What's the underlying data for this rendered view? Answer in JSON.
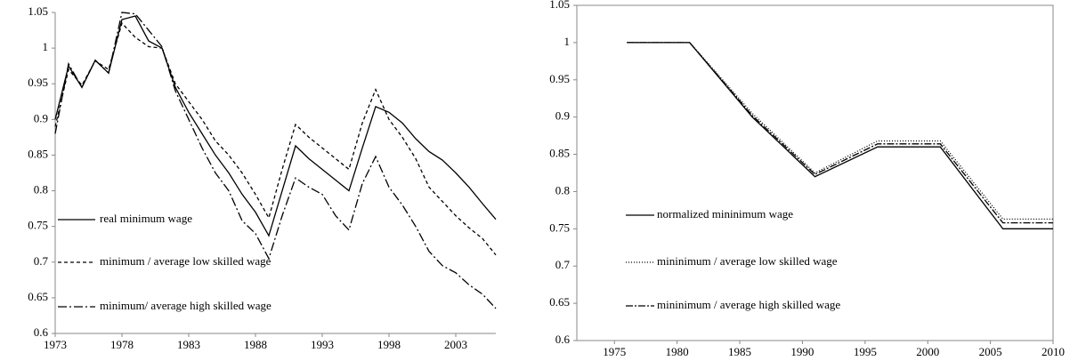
{
  "chart_data": [
    {
      "type": "line",
      "x": [
        1973,
        1974,
        1975,
        1976,
        1977,
        1978,
        1979,
        1980,
        1981,
        1982,
        1983,
        1984,
        1985,
        1986,
        1987,
        1988,
        1989,
        1990,
        1991,
        1992,
        1993,
        1994,
        1995,
        1996,
        1997,
        1998,
        1999,
        2000,
        2001,
        2002,
        2003,
        2004,
        2005,
        2006
      ],
      "series": [
        {
          "name": "real minimum wage",
          "color": "#000000",
          "dash": "none",
          "values": [
            0.9,
            0.975,
            0.945,
            0.983,
            0.965,
            1.04,
            1.045,
            1.01,
            1.0,
            0.945,
            0.91,
            0.88,
            0.85,
            0.825,
            0.795,
            0.77,
            0.737,
            0.8,
            0.863,
            0.845,
            0.83,
            0.815,
            0.8,
            0.86,
            0.918,
            0.91,
            0.895,
            0.873,
            0.855,
            0.843,
            0.825,
            0.805,
            0.782,
            0.76
          ]
        },
        {
          "name": "minimum / average low skilled wage",
          "color": "#000000",
          "dash": "4,3",
          "values": [
            0.89,
            0.97,
            0.948,
            0.982,
            0.97,
            1.035,
            1.015,
            1.002,
            1.0,
            0.95,
            0.925,
            0.9,
            0.87,
            0.85,
            0.825,
            0.795,
            0.762,
            0.83,
            0.893,
            0.875,
            0.86,
            0.845,
            0.83,
            0.895,
            0.942,
            0.9,
            0.875,
            0.845,
            0.805,
            0.785,
            0.765,
            0.748,
            0.733,
            0.71
          ]
        },
        {
          "name": "minimum/ average high skilled wage",
          "color": "#000000",
          "dash": "10,3,2,3",
          "values": [
            0.88,
            0.978,
            0.945,
            0.983,
            0.965,
            1.05,
            1.048,
            1.025,
            1.002,
            0.94,
            0.9,
            0.86,
            0.825,
            0.8,
            0.758,
            0.74,
            0.705,
            0.765,
            0.818,
            0.805,
            0.795,
            0.765,
            0.745,
            0.81,
            0.848,
            0.805,
            0.78,
            0.75,
            0.715,
            0.695,
            0.685,
            0.668,
            0.655,
            0.635
          ]
        }
      ],
      "xlim": [
        1973,
        2006
      ],
      "xticks": [
        1973,
        1978,
        1983,
        1988,
        1993,
        1998,
        2003
      ],
      "ylim": [
        0.6,
        1.05
      ],
      "yticks": [
        0.6,
        0.65,
        0.7,
        0.75,
        0.8,
        0.85,
        0.9,
        0.95,
        1,
        1.05
      ],
      "grid": false,
      "frame": false,
      "legend": "lower left"
    },
    {
      "type": "line",
      "x": [
        1976,
        1981,
        1986,
        1991,
        1996,
        2001,
        2006,
        2010
      ],
      "series": [
        {
          "name": "normalized mininimum wage",
          "color": "#000000",
          "dash": "none",
          "values": [
            1,
            1,
            0.9,
            0.82,
            0.86,
            0.86,
            0.75,
            0.75
          ]
        },
        {
          "name": "mininimum / average low skilled wage",
          "color": "#000000",
          "dash": "1,2",
          "values": [
            1,
            1,
            0.905,
            0.825,
            0.868,
            0.868,
            0.763,
            0.763
          ]
        },
        {
          "name": "mininimum / average high skilled wage",
          "color": "#000000",
          "dash": "8,2,2,2",
          "values": [
            1,
            1,
            0.902,
            0.823,
            0.864,
            0.864,
            0.758,
            0.758
          ]
        }
      ],
      "xlim": [
        1972,
        2010
      ],
      "xticks": [
        1975,
        1980,
        1985,
        1990,
        1995,
        2000,
        2005,
        2010
      ],
      "ylim": [
        0.6,
        1.05
      ],
      "yticks": [
        0.6,
        0.65,
        0.7,
        0.75,
        0.8,
        0.85,
        0.9,
        0.95,
        1,
        1.05
      ],
      "grid": false,
      "frame": true,
      "legend": "lower left"
    }
  ]
}
